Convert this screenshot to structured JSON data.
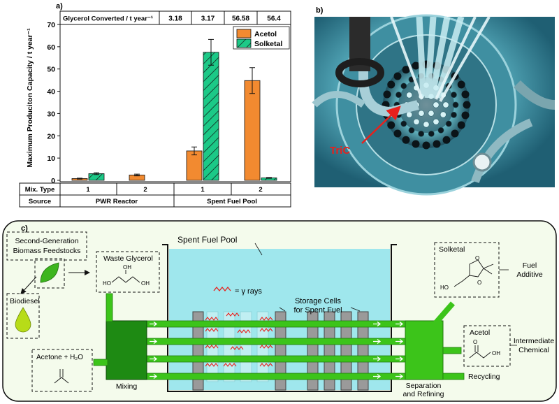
{
  "panel_labels": {
    "a": "a)",
    "b": "b)",
    "c": "c)"
  },
  "chart_data": {
    "type": "bar",
    "ylabel": "Maximum Produciton Capacity / t year⁻¹",
    "ylim": [
      0,
      70
    ],
    "yticks": [
      "0",
      "10",
      "20",
      "30",
      "40",
      "50",
      "60",
      "70"
    ],
    "table_header": "Glycerol Converted / t year⁻¹",
    "converted": [
      "3.18",
      "3.17",
      "56.58",
      "56.4"
    ],
    "mix_label": "Mix. Type",
    "mix_types": [
      "1",
      "2",
      "1",
      "2"
    ],
    "source_label": "Source",
    "sources": [
      "PWR Reactor",
      "Spent Fuel Pool"
    ],
    "series": [
      {
        "name": "Acetol",
        "color": "#f28a30",
        "values": [
          0.8,
          2.4,
          13.2,
          44.8
        ],
        "errors": [
          0.2,
          0.4,
          1.8,
          5.8
        ]
      },
      {
        "name": "Solketal",
        "color": "#1cc987",
        "hatch": true,
        "values": [
          3.0,
          0,
          57.5,
          1.1
        ],
        "errors": [
          0.4,
          0,
          5.8,
          0.2
        ]
      }
    ]
  },
  "photo": {
    "label": "TriC",
    "arrow_color": "#e8201c"
  },
  "diagram": {
    "feedstock": "Second-Generation\nBiomass Feedstocks",
    "biodiesel": "Biodiesel",
    "waste_glycerol": "Waste Glycerol",
    "acetone": "Acetone + H₂O",
    "mixing": "Mixing",
    "pool": "Spent Fuel Pool",
    "gamma": "= γ rays",
    "storage": "Storage Cells\nfor Spent Fuel",
    "solketal": "Solketal",
    "fuel_additive": "Fuel\nAdditive",
    "acetol": "Acetol",
    "intermediate": "Intermediate\nChemical",
    "recycling": "Recycling",
    "separation": "Separation\nand Refining",
    "oh_labels": [
      "HO",
      "OH",
      "OH",
      "HO",
      "O",
      "O",
      "O",
      "OH",
      "O"
    ]
  }
}
